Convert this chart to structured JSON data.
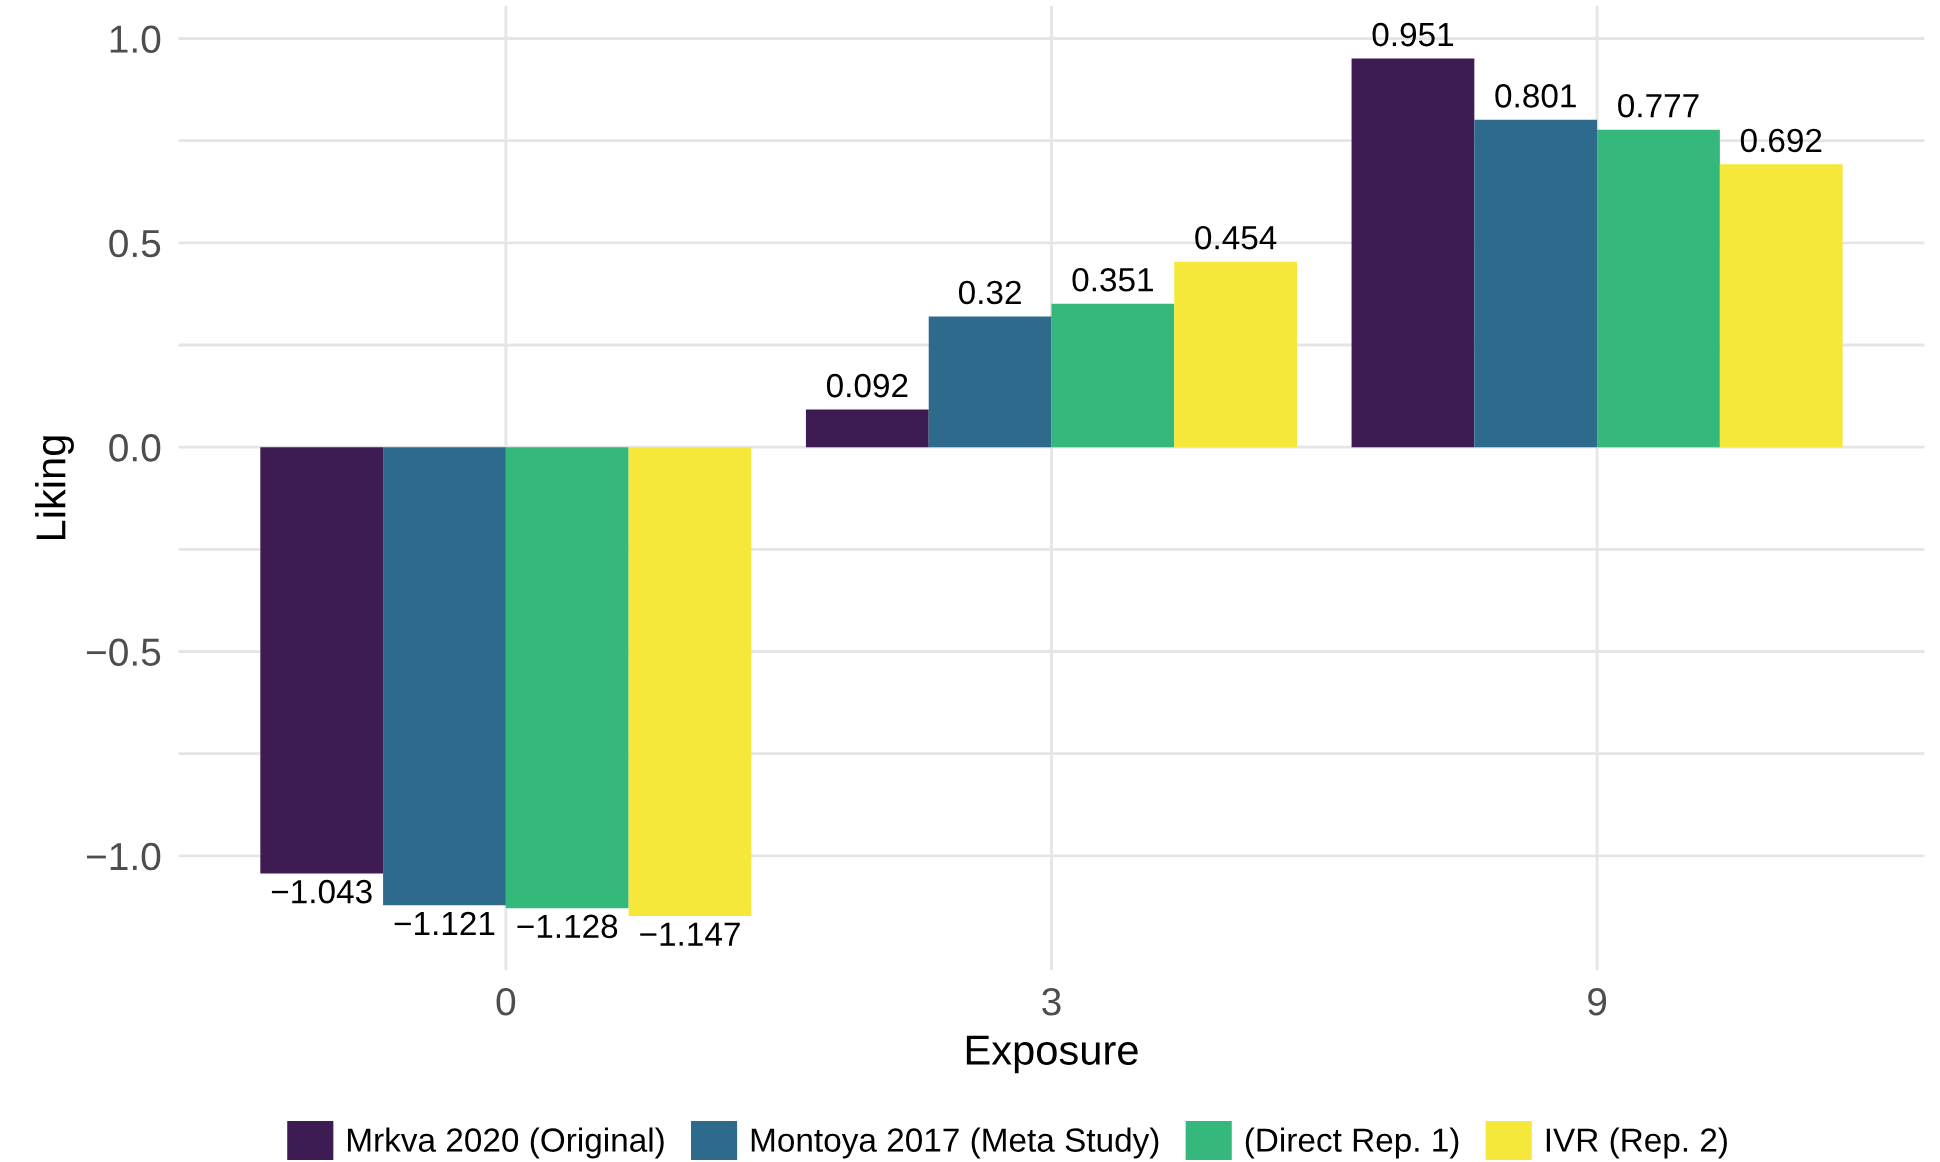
{
  "chart_data": {
    "type": "bar",
    "xlabel": "Exposure",
    "ylabel": "Liking",
    "categories": [
      "0",
      "3",
      "9"
    ],
    "series": [
      {
        "name": "Mrkva 2020 (Original)",
        "color": "#3e1b52",
        "values": [
          -1.043,
          0.092,
          0.951
        ]
      },
      {
        "name": "Montoya 2017 (Meta Study)",
        "color": "#2d6a8c",
        "values": [
          -1.121,
          0.32,
          0.801
        ]
      },
      {
        "name": "(Direct Rep. 1)",
        "color": "#34b87c",
        "values": [
          -1.128,
          0.351,
          0.777
        ]
      },
      {
        "name": "IVR (Rep. 2)",
        "color": "#f5e83a",
        "values": [
          -1.147,
          0.454,
          0.692
        ]
      }
    ],
    "ylim": [
      -1.28,
      1.08
    ],
    "yticks": [
      {
        "value": -1.0,
        "label": "−1.0"
      },
      {
        "value": -0.75,
        "label": null
      },
      {
        "value": -0.5,
        "label": "−0.5"
      },
      {
        "value": -0.25,
        "label": null
      },
      {
        "value": 0.0,
        "label": "0.0"
      },
      {
        "value": 0.25,
        "label": null
      },
      {
        "value": 0.5,
        "label": "0.5"
      },
      {
        "value": 0.75,
        "label": null
      },
      {
        "value": 1.0,
        "label": "1.0"
      }
    ],
    "grid": true,
    "legend": "bottom",
    "data_labels": true
  }
}
